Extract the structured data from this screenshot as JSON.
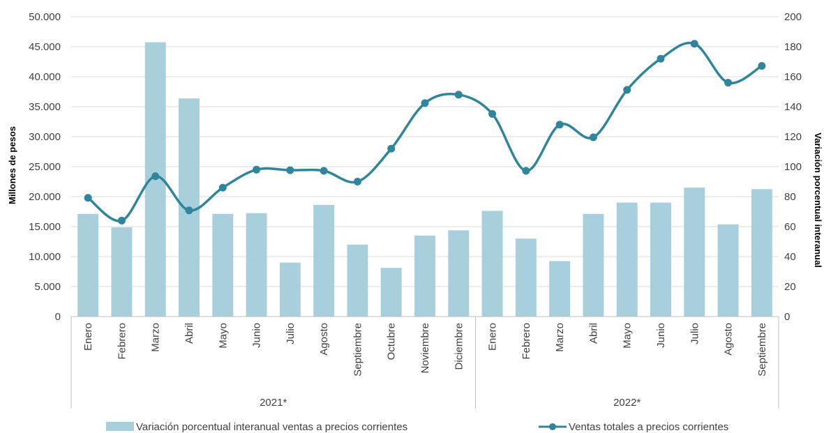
{
  "chart_data": {
    "type": "bar+line",
    "categories": [
      "Enero",
      "Febrero",
      "Marzo",
      "Abril",
      "Mayo",
      "Junio",
      "Julio",
      "Agosto",
      "Septiembre",
      "Octubre",
      "Noviembre",
      "Diciembre",
      "Enero",
      "Febrero",
      "Marzo",
      "Abril",
      "Mayo",
      "Junio",
      "Julio",
      "Agosto",
      "Septiembre"
    ],
    "groups": [
      {
        "label": "2021*",
        "count": 12
      },
      {
        "label": "2022*",
        "count": 9
      }
    ],
    "series": [
      {
        "name": "Variación porcentual interanual ventas a precios corrientes",
        "type": "bar",
        "axis": "right",
        "color": "#a8cfdc",
        "values": [
          68.5,
          59.5,
          183,
          145.5,
          68.5,
          69,
          36,
          74.5,
          48,
          32.5,
          54,
          57.5,
          70.5,
          52,
          37,
          68.5,
          76,
          76,
          86,
          61.5,
          85
        ]
      },
      {
        "name": "Ventas totales a precios corrientes",
        "type": "line",
        "axis": "left",
        "color": "#2f8599",
        "values": [
          19800,
          16000,
          23400,
          17700,
          21500,
          24500,
          24400,
          24300,
          22500,
          28000,
          35600,
          37000,
          33800,
          24300,
          32000,
          29900,
          37800,
          43000,
          45500,
          39000,
          41800
        ]
      }
    ],
    "left_axis": {
      "label": "Millones de pesos",
      "min": 0,
      "max": 50000,
      "step": 5000,
      "tick_labels": [
        "0",
        "5.000",
        "10.000",
        "15.000",
        "20.000",
        "25.000",
        "30.000",
        "35.000",
        "40.000",
        "45.000",
        "50.000"
      ]
    },
    "right_axis": {
      "label": "Variación porcentual interanual",
      "min": 0,
      "max": 200,
      "step": 20,
      "tick_labels": [
        "0",
        "20",
        "40",
        "60",
        "80",
        "100",
        "120",
        "140",
        "160",
        "180",
        "200"
      ]
    },
    "grid": true,
    "legend_position": "bottom"
  }
}
